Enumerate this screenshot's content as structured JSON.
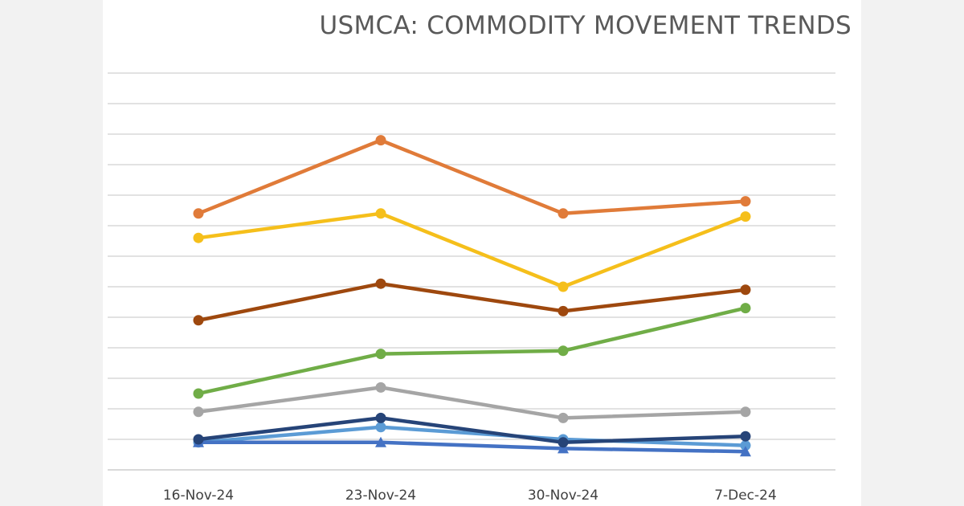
{
  "chart_data": {
    "type": "line",
    "title": "USMCA: COMMODITY MOVEMENT TRENDS",
    "categories": [
      "16-Nov-24",
      "23-Nov-24",
      "30-Nov-24",
      "7-Dec-24"
    ],
    "ylim": [
      0,
      13
    ],
    "y_tick_labels_shown": false,
    "grid": true,
    "legend": "none",
    "series": [
      {
        "color": "#e07b39",
        "marker": "circle",
        "values": [
          8.4,
          10.8,
          8.4,
          8.8
        ]
      },
      {
        "color": "#f5bf1b",
        "marker": "circle",
        "values": [
          7.6,
          8.4,
          6.0,
          8.3
        ]
      },
      {
        "color": "#9e480e",
        "marker": "circle",
        "values": [
          4.9,
          6.1,
          5.2,
          5.9
        ]
      },
      {
        "color": "#70ad47",
        "marker": "circle",
        "values": [
          2.5,
          3.8,
          3.9,
          5.3
        ]
      },
      {
        "color": "#a5a5a5",
        "marker": "circle",
        "values": [
          1.9,
          2.7,
          1.7,
          1.9
        ]
      },
      {
        "color": "#5b9bd5",
        "marker": "circle",
        "values": [
          0.9,
          1.4,
          1.0,
          0.8
        ]
      },
      {
        "color": "#4472c4",
        "marker": "triangle",
        "values": [
          0.9,
          0.9,
          0.7,
          0.6
        ]
      },
      {
        "color": "#264478",
        "marker": "circle",
        "values": [
          1.0,
          1.7,
          0.9,
          1.1
        ]
      }
    ]
  }
}
